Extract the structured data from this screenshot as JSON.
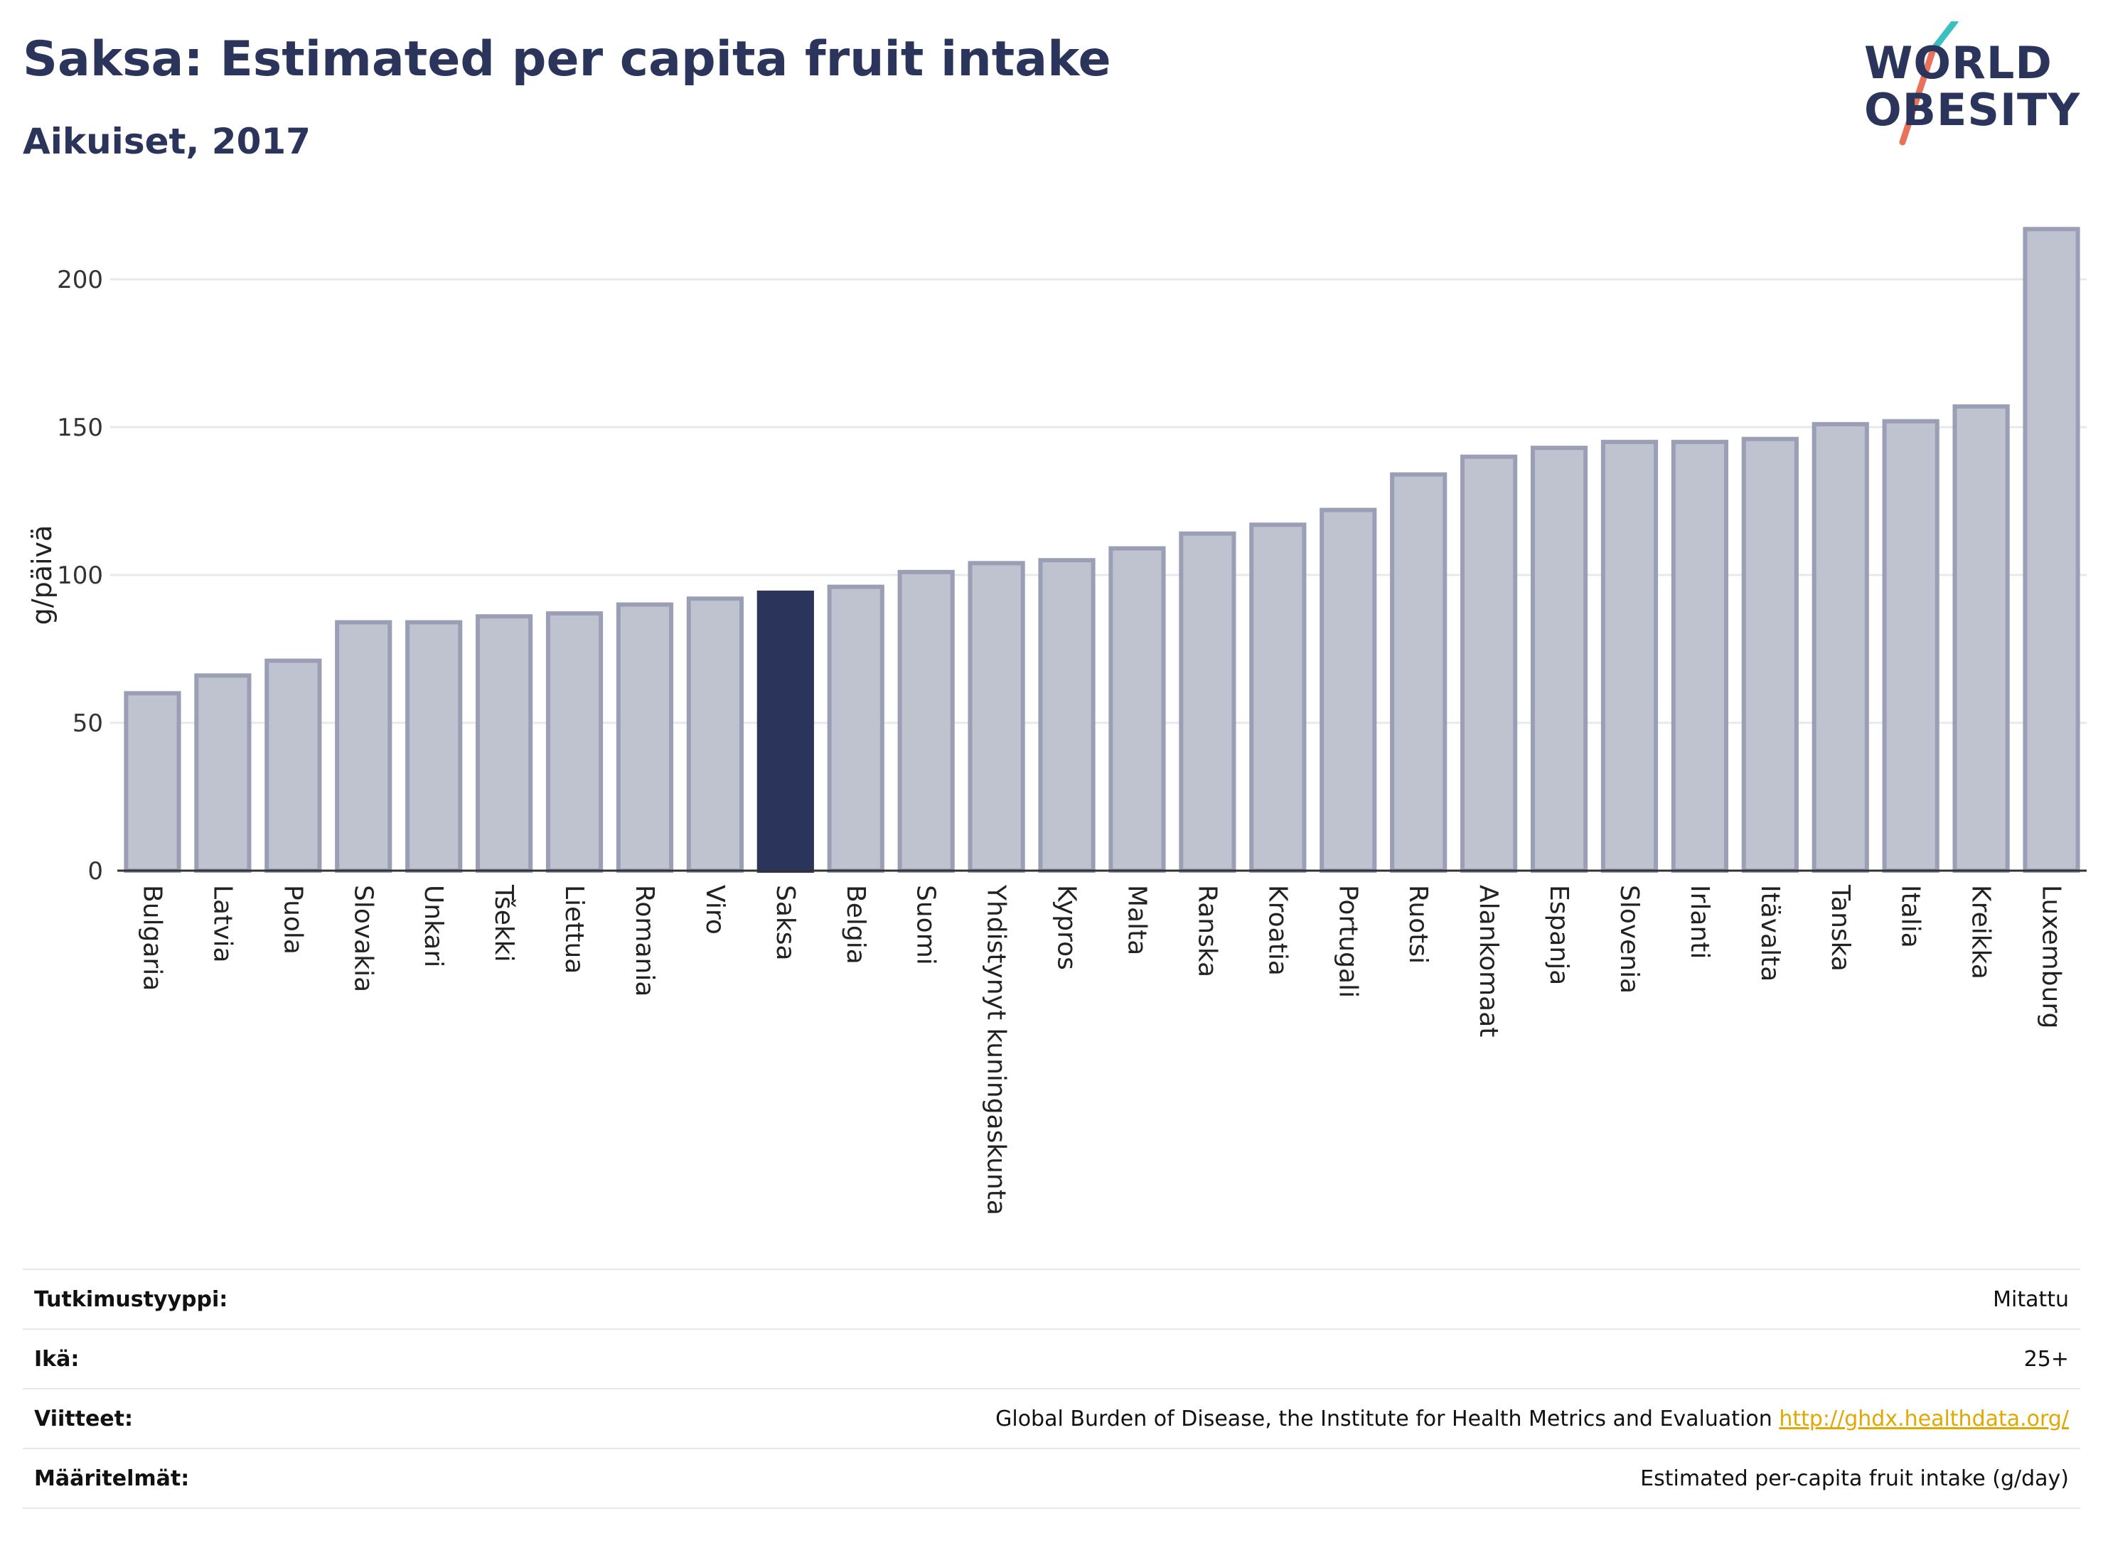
{
  "header": {
    "title": "Saksa: Estimated per capita fruit intake",
    "subtitle": "Aikuiset, 2017"
  },
  "logo": {
    "line1": "WORLD",
    "line2": "OBESITY",
    "accent_teal": "#3bbfc1",
    "accent_coral": "#e8735a"
  },
  "colors": {
    "bar_default": "#bfc3d0",
    "bar_default_border": "#9a9fb6",
    "bar_highlight": "#2b355c",
    "grid": "#e6e8ee",
    "axis": "#333333"
  },
  "chart_data": {
    "type": "bar",
    "ylabel": "g/päivä",
    "ylim": [
      0,
      220
    ],
    "yticks": [
      0,
      50,
      100,
      150,
      200
    ],
    "grid": true,
    "highlight": "Saksa",
    "categories": [
      "Bulgaria",
      "Latvia",
      "Puola",
      "Slovakia",
      "Unkari",
      "Tšekki",
      "Liettua",
      "Romania",
      "Viro",
      "Saksa",
      "Belgia",
      "Suomi",
      "Yhdistynyt kuningaskunta",
      "Kypros",
      "Malta",
      "Ranska",
      "Kroatia",
      "Portugali",
      "Ruotsi",
      "Alankomaat",
      "Espanja",
      "Slovenia",
      "Irlanti",
      "Itävalta",
      "Tanska",
      "Italia",
      "Kreikka",
      "Luxemburg"
    ],
    "values": [
      60,
      66,
      71,
      84,
      84,
      86,
      87,
      90,
      92,
      94,
      96,
      101,
      104,
      105,
      109,
      114,
      117,
      122,
      134,
      140,
      143,
      145,
      145,
      146,
      151,
      152,
      157,
      217
    ]
  },
  "info": [
    {
      "key": "Tutkimustyyppi:",
      "value": "Mitattu",
      "link": ""
    },
    {
      "key": "Ikä:",
      "value": "25+",
      "link": ""
    },
    {
      "key": "Viitteet:",
      "value": "Global Burden of Disease, the Institute for Health Metrics and Evaluation",
      "link": "http://ghdx.healthdata.org/"
    },
    {
      "key": "Määritelmät:",
      "value": "Estimated per-capita fruit intake (g/day)",
      "link": ""
    }
  ]
}
